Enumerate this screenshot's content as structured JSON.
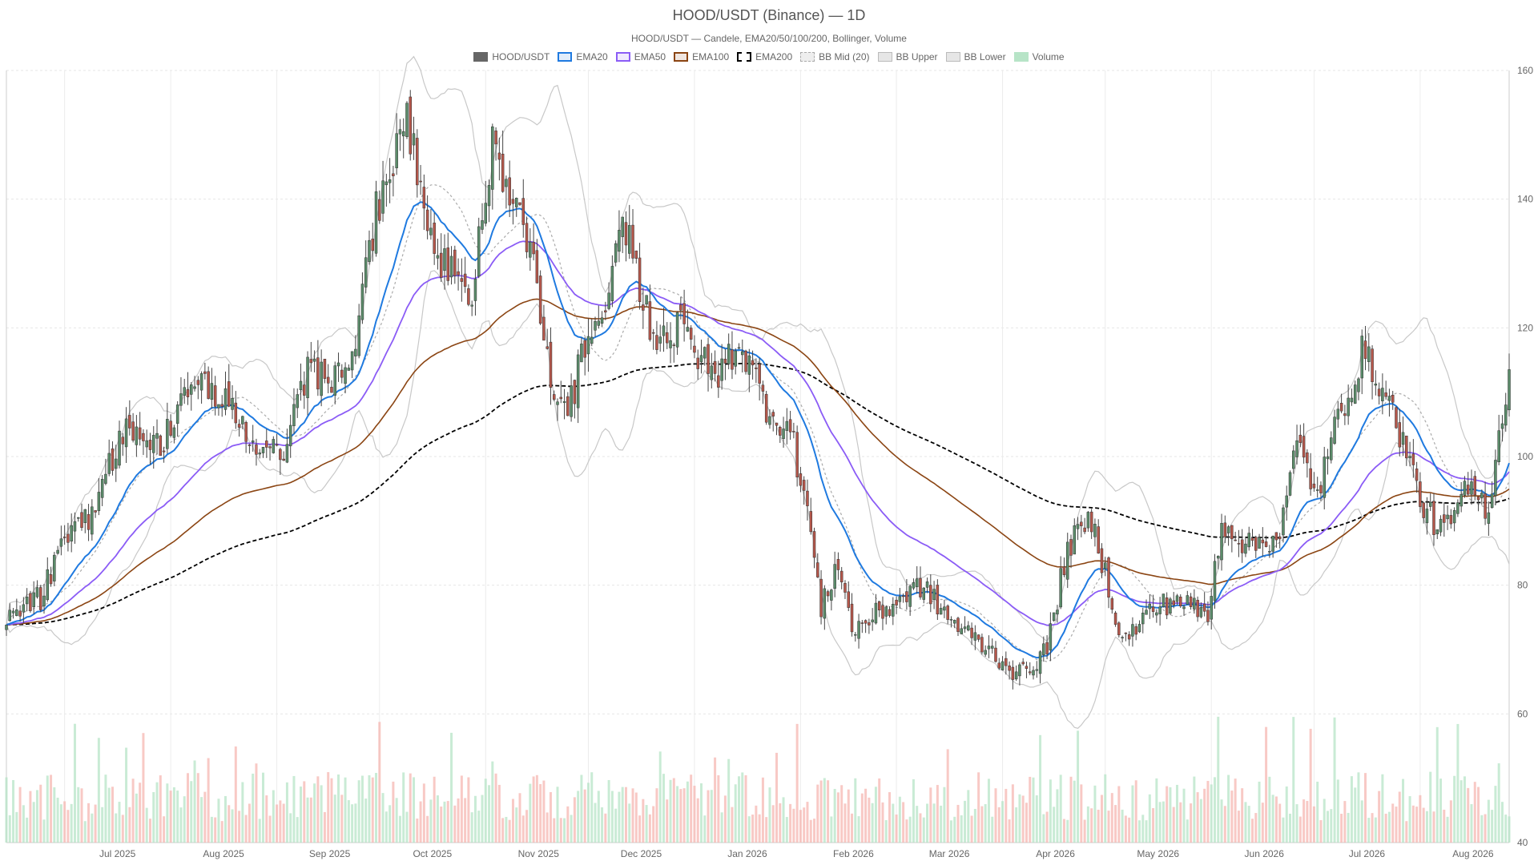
{
  "chart_data": {
    "type": "candlestick",
    "title": "HOOD/USDT (Binance) — 1D",
    "subtitle": "HOOD/USDT — Candele, EMA20/50/100/200, Bollinger, Volume",
    "legend": [
      {
        "label": "HOOD/USDT",
        "kind": "solid",
        "color": "#666666"
      },
      {
        "label": "EMA20",
        "kind": "line",
        "color": "#1f7ae0"
      },
      {
        "label": "EMA50",
        "kind": "line",
        "color": "#8b5cf6"
      },
      {
        "label": "EMA100",
        "kind": "line",
        "color": "#8b4513"
      },
      {
        "label": "EMA200",
        "kind": "dashed",
        "color": "#000000"
      },
      {
        "label": "BB Mid (20)",
        "kind": "dotted",
        "color": "#aaaaaa"
      },
      {
        "label": "BB Upper",
        "kind": "box",
        "color": "#bbbbbb"
      },
      {
        "label": "BB Lower",
        "kind": "box",
        "color": "#bbbbbb"
      },
      {
        "label": "Volume",
        "kind": "volume",
        "color": "#b7e4c7"
      }
    ],
    "y_axis": {
      "min": 40,
      "max": 160,
      "ticks": [
        40,
        60,
        80,
        100,
        120,
        140,
        160
      ],
      "position": "right"
    },
    "x_axis": {
      "start": "2025-06-14",
      "end": "2026-08-27",
      "labels": [
        "Jul 2025",
        "Aug 2025",
        "Sep 2025",
        "Oct 2025",
        "Nov 2025",
        "Dec 2025",
        "Jan 2026",
        "Feb 2026",
        "Mar 2026",
        "Apr 2026",
        "May 2026",
        "Jun 2026",
        "Jul 2026",
        "Aug 2026"
      ]
    },
    "grid": true,
    "colors": {
      "up": "#5b8c6a",
      "down": "#b5574b",
      "vol_up": "#b7e4c7",
      "vol_down": "#f5b7b1"
    },
    "close_anchors": [
      [
        "2025-06-14",
        75
      ],
      [
        "2025-06-24",
        78
      ],
      [
        "2025-07-01",
        87
      ],
      [
        "2025-07-08",
        90
      ],
      [
        "2025-07-18",
        104
      ],
      [
        "2025-07-29",
        101
      ],
      [
        "2025-08-08",
        113
      ],
      [
        "2025-08-14",
        110
      ],
      [
        "2025-08-24",
        103
      ],
      [
        "2025-09-03",
        101
      ],
      [
        "2025-09-10",
        113
      ],
      [
        "2025-09-18",
        112
      ],
      [
        "2025-09-24",
        118
      ],
      [
        "2025-09-30",
        138
      ],
      [
        "2025-10-09",
        153
      ],
      [
        "2025-10-15",
        134
      ],
      [
        "2025-10-20",
        130
      ],
      [
        "2025-10-28",
        125
      ],
      [
        "2025-11-03",
        148
      ],
      [
        "2025-11-10",
        140
      ],
      [
        "2025-11-15",
        130
      ],
      [
        "2025-11-20",
        110
      ],
      [
        "2025-11-25",
        106
      ],
      [
        "2025-12-01",
        120
      ],
      [
        "2025-12-07",
        126
      ],
      [
        "2025-12-12",
        136
      ],
      [
        "2025-12-20",
        118
      ],
      [
        "2025-12-28",
        120
      ],
      [
        "2026-01-07",
        112
      ],
      [
        "2026-01-14",
        118
      ],
      [
        "2026-01-22",
        108
      ],
      [
        "2026-01-29",
        104
      ],
      [
        "2026-02-03",
        92
      ],
      [
        "2026-02-07",
        76
      ],
      [
        "2026-02-12",
        84
      ],
      [
        "2026-02-16",
        73
      ],
      [
        "2026-02-25",
        76
      ],
      [
        "2026-03-08",
        80
      ],
      [
        "2026-03-18",
        74
      ],
      [
        "2026-03-28",
        70
      ],
      [
        "2026-04-06",
        66
      ],
      [
        "2026-04-14",
        70
      ],
      [
        "2026-04-20",
        86
      ],
      [
        "2026-04-27",
        90
      ],
      [
        "2026-05-01",
        82
      ],
      [
        "2026-05-06",
        71
      ],
      [
        "2026-05-14",
        76
      ],
      [
        "2026-05-22",
        78
      ],
      [
        "2026-05-31",
        75
      ],
      [
        "2026-06-04",
        90
      ],
      [
        "2026-06-12",
        86
      ],
      [
        "2026-06-21",
        88
      ],
      [
        "2026-06-26",
        102
      ],
      [
        "2026-07-02",
        94
      ],
      [
        "2026-07-08",
        106
      ],
      [
        "2026-07-15",
        116
      ],
      [
        "2026-07-20",
        112
      ],
      [
        "2026-07-26",
        104
      ],
      [
        "2026-08-02",
        92
      ],
      [
        "2026-08-08",
        88
      ],
      [
        "2026-08-15",
        95
      ],
      [
        "2026-08-21",
        92
      ],
      [
        "2026-08-24",
        104
      ],
      [
        "2026-08-27",
        112
      ]
    ]
  }
}
